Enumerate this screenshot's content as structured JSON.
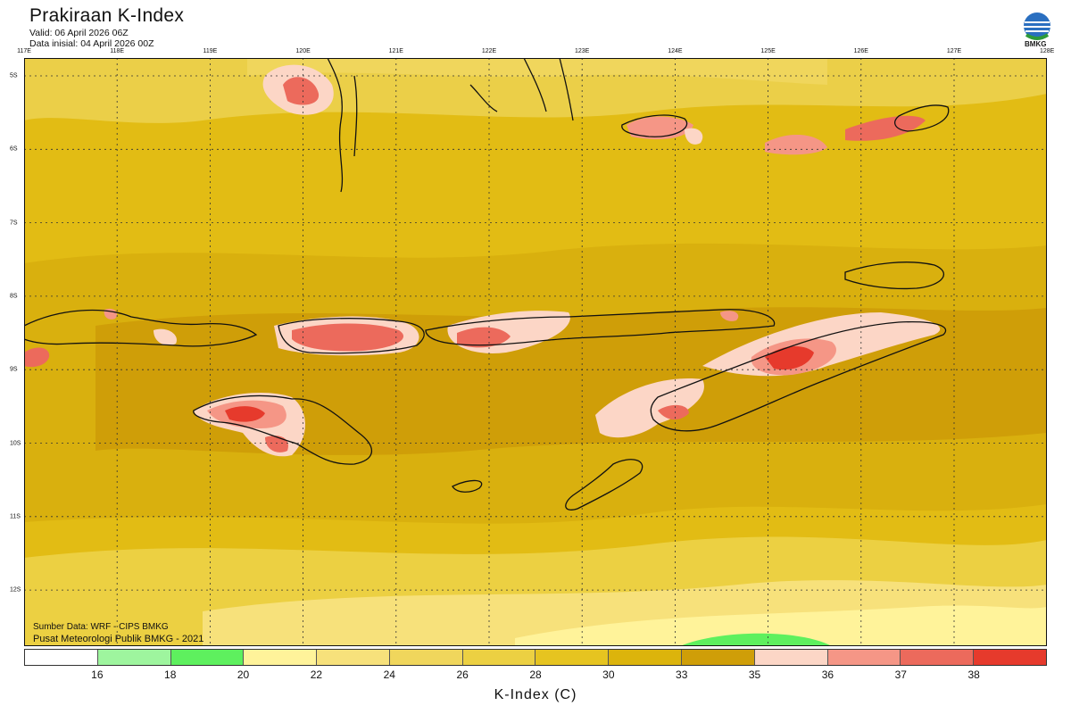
{
  "header": {
    "title": "Prakiraan K-Index",
    "valid": "Valid: 06 April 2026 06Z",
    "initial": "Data inisial: 04 April 2026 00Z"
  },
  "logo": {
    "label": "BMKG",
    "icon": "bmkg-logo-icon"
  },
  "axes": {
    "lon_ticks": [
      "117E",
      "118E",
      "119E",
      "120E",
      "121E",
      "122E",
      "123E",
      "124E",
      "125E",
      "126E",
      "127E",
      "128E"
    ],
    "lat_ticks": [
      "5S",
      "6S",
      "7S",
      "8S",
      "9S",
      "10S",
      "11S",
      "12S"
    ]
  },
  "source": {
    "line1": "Sumber Data: WRF - CIPS BMKG",
    "line2": "Pusat Meteorologi Publik BMKG - 2021"
  },
  "colorbar": {
    "colors": [
      "#ffffff",
      "#9ef59e",
      "#5ef05e",
      "#fff39a",
      "#f7e17b",
      "#f0d65c",
      "#ecd042",
      "#e6c420",
      "#dcb40c",
      "#cf9e08",
      "#fcd6c6",
      "#f59686",
      "#ec6a5c",
      "#e63a2c"
    ],
    "labels": [
      "16",
      "18",
      "20",
      "22",
      "24",
      "26",
      "28",
      "30",
      "33",
      "35",
      "36",
      "37",
      "38"
    ],
    "title": "K-Index (C)"
  }
}
